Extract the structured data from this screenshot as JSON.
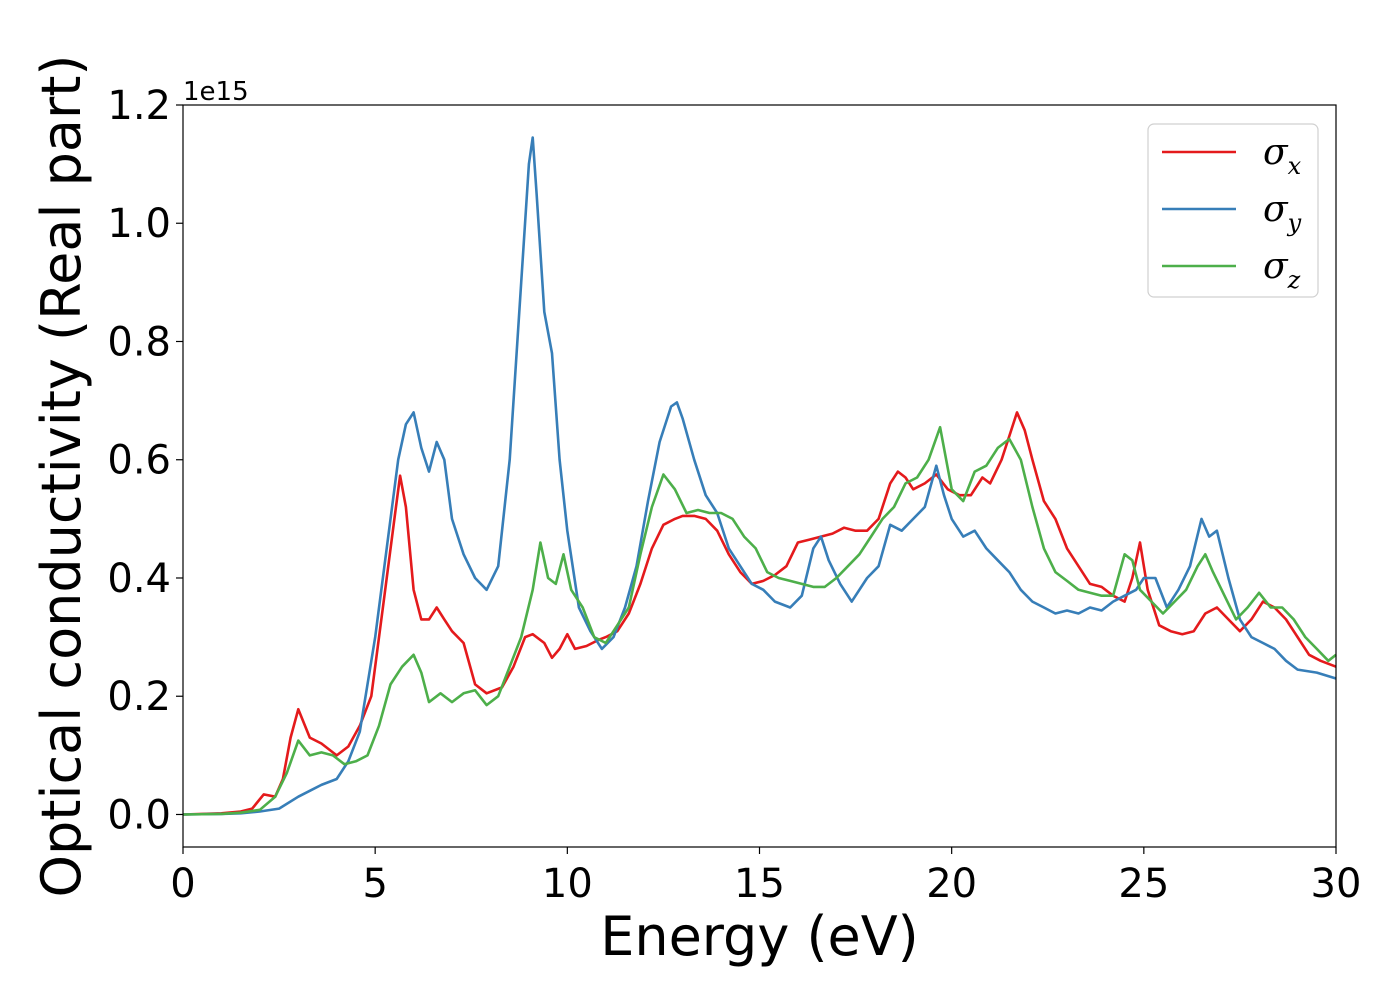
{
  "chart_data": {
    "type": "line",
    "title": "",
    "xlabel": "Energy (eV)",
    "ylabel": "Optical conductivity (Real part)",
    "y_offset_label": "1e15",
    "xlim": [
      0,
      30
    ],
    "ylim": [
      -0.055,
      1.2
    ],
    "x_ticks": [
      0,
      5,
      10,
      15,
      20,
      25,
      30
    ],
    "x_tick_labels": [
      "0",
      "5",
      "10",
      "15",
      "20",
      "25",
      "30"
    ],
    "y_ticks": [
      0.0,
      0.2,
      0.4,
      0.6,
      0.8,
      1.0,
      1.2
    ],
    "y_tick_labels": [
      "0.0",
      "0.2",
      "0.4",
      "0.6",
      "0.8",
      "1.0",
      "1.2"
    ],
    "grid": false,
    "legend_position": "top-right",
    "series": [
      {
        "name": "σ",
        "subscript": "x",
        "color": "#e41a1c",
        "x": [
          0,
          1,
          1.5,
          1.8,
          2.1,
          2.4,
          2.6,
          2.8,
          3.0,
          3.3,
          3.6,
          4.0,
          4.3,
          4.6,
          4.9,
          5.2,
          5.5,
          5.65,
          5.8,
          6.0,
          6.2,
          6.4,
          6.6,
          6.8,
          7.0,
          7.3,
          7.6,
          7.9,
          8.3,
          8.6,
          8.9,
          9.1,
          9.4,
          9.6,
          9.8,
          10.0,
          10.2,
          10.5,
          10.8,
          11.0,
          11.3,
          11.6,
          11.9,
          12.2,
          12.5,
          12.8,
          13.0,
          13.3,
          13.6,
          13.9,
          14.2,
          14.5,
          14.8,
          15.1,
          15.4,
          15.7,
          16.0,
          16.3,
          16.6,
          16.9,
          17.2,
          17.5,
          17.8,
          18.1,
          18.4,
          18.6,
          18.8,
          19.0,
          19.3,
          19.6,
          19.9,
          20.2,
          20.5,
          20.8,
          21.0,
          21.3,
          21.5,
          21.7,
          21.9,
          22.1,
          22.4,
          22.7,
          23.0,
          23.3,
          23.6,
          23.9,
          24.2,
          24.5,
          24.7,
          24.9,
          25.1,
          25.4,
          25.7,
          26.0,
          26.3,
          26.6,
          26.9,
          27.2,
          27.5,
          27.8,
          28.1,
          28.4,
          28.7,
          29.0,
          29.3,
          29.6,
          30.0
        ],
        "y": [
          0,
          0.002,
          0.005,
          0.01,
          0.034,
          0.03,
          0.06,
          0.13,
          0.178,
          0.13,
          0.12,
          0.1,
          0.115,
          0.15,
          0.2,
          0.35,
          0.5,
          0.573,
          0.52,
          0.38,
          0.33,
          0.33,
          0.35,
          0.33,
          0.31,
          0.29,
          0.22,
          0.205,
          0.215,
          0.25,
          0.3,
          0.305,
          0.29,
          0.265,
          0.28,
          0.305,
          0.28,
          0.285,
          0.295,
          0.3,
          0.31,
          0.34,
          0.39,
          0.45,
          0.49,
          0.5,
          0.505,
          0.505,
          0.5,
          0.48,
          0.44,
          0.41,
          0.39,
          0.395,
          0.405,
          0.42,
          0.46,
          0.465,
          0.47,
          0.475,
          0.485,
          0.48,
          0.48,
          0.5,
          0.56,
          0.58,
          0.57,
          0.55,
          0.56,
          0.575,
          0.55,
          0.54,
          0.54,
          0.57,
          0.56,
          0.6,
          0.64,
          0.68,
          0.65,
          0.6,
          0.53,
          0.5,
          0.45,
          0.42,
          0.39,
          0.385,
          0.37,
          0.36,
          0.4,
          0.46,
          0.38,
          0.32,
          0.31,
          0.305,
          0.31,
          0.34,
          0.35,
          0.33,
          0.31,
          0.33,
          0.36,
          0.35,
          0.33,
          0.3,
          0.27,
          0.26,
          0.25
        ]
      },
      {
        "name": "σ",
        "subscript": "y",
        "color": "#377eb8",
        "x": [
          0,
          1,
          1.5,
          2.0,
          2.5,
          3.0,
          3.3,
          3.6,
          4.0,
          4.3,
          4.6,
          5.0,
          5.3,
          5.6,
          5.8,
          6.0,
          6.2,
          6.4,
          6.6,
          6.8,
          7.0,
          7.3,
          7.6,
          7.9,
          8.2,
          8.5,
          8.8,
          9.0,
          9.1,
          9.2,
          9.4,
          9.6,
          9.8,
          10.0,
          10.3,
          10.6,
          10.9,
          11.2,
          11.5,
          11.8,
          12.1,
          12.4,
          12.7,
          12.85,
          13.0,
          13.3,
          13.6,
          13.9,
          14.2,
          14.5,
          14.8,
          15.1,
          15.4,
          15.8,
          16.1,
          16.4,
          16.6,
          16.8,
          17.1,
          17.4,
          17.8,
          18.1,
          18.4,
          18.7,
          19.0,
          19.3,
          19.6,
          19.8,
          20.0,
          20.3,
          20.6,
          20.9,
          21.2,
          21.5,
          21.8,
          22.1,
          22.4,
          22.7,
          23.0,
          23.3,
          23.6,
          23.9,
          24.2,
          24.5,
          24.8,
          25.0,
          25.3,
          25.6,
          25.9,
          26.2,
          26.5,
          26.7,
          26.9,
          27.2,
          27.5,
          27.8,
          28.1,
          28.4,
          28.7,
          29.0,
          29.5,
          30.0
        ],
        "y": [
          0,
          0.001,
          0.002,
          0.005,
          0.01,
          0.03,
          0.04,
          0.05,
          0.06,
          0.09,
          0.14,
          0.3,
          0.45,
          0.6,
          0.66,
          0.68,
          0.62,
          0.58,
          0.63,
          0.6,
          0.5,
          0.44,
          0.4,
          0.38,
          0.42,
          0.6,
          0.9,
          1.1,
          1.145,
          1.05,
          0.85,
          0.78,
          0.6,
          0.48,
          0.35,
          0.31,
          0.28,
          0.3,
          0.35,
          0.42,
          0.53,
          0.63,
          0.69,
          0.697,
          0.67,
          0.6,
          0.54,
          0.51,
          0.45,
          0.42,
          0.39,
          0.38,
          0.36,
          0.35,
          0.37,
          0.45,
          0.47,
          0.43,
          0.39,
          0.36,
          0.4,
          0.42,
          0.49,
          0.48,
          0.5,
          0.52,
          0.59,
          0.54,
          0.5,
          0.47,
          0.48,
          0.45,
          0.43,
          0.41,
          0.38,
          0.36,
          0.35,
          0.34,
          0.345,
          0.34,
          0.35,
          0.345,
          0.36,
          0.37,
          0.38,
          0.4,
          0.4,
          0.35,
          0.38,
          0.42,
          0.5,
          0.47,
          0.48,
          0.4,
          0.33,
          0.3,
          0.29,
          0.28,
          0.26,
          0.245,
          0.24,
          0.23
        ]
      },
      {
        "name": "σ",
        "subscript": "z",
        "color": "#4daf4a",
        "x": [
          0,
          1,
          1.5,
          2.0,
          2.4,
          2.7,
          3.0,
          3.3,
          3.6,
          3.9,
          4.2,
          4.5,
          4.8,
          5.1,
          5.4,
          5.7,
          6.0,
          6.2,
          6.4,
          6.7,
          7.0,
          7.3,
          7.6,
          7.9,
          8.2,
          8.5,
          8.8,
          9.1,
          9.3,
          9.5,
          9.7,
          9.9,
          10.1,
          10.4,
          10.7,
          11.0,
          11.3,
          11.6,
          11.9,
          12.2,
          12.5,
          12.8,
          13.1,
          13.4,
          13.7,
          14.0,
          14.3,
          14.6,
          14.9,
          15.2,
          15.5,
          15.8,
          16.1,
          16.4,
          16.7,
          17.0,
          17.3,
          17.6,
          17.9,
          18.2,
          18.5,
          18.8,
          19.1,
          19.4,
          19.7,
          20.0,
          20.3,
          20.6,
          20.9,
          21.2,
          21.5,
          21.8,
          22.1,
          22.4,
          22.7,
          23.0,
          23.3,
          23.6,
          23.9,
          24.2,
          24.5,
          24.7,
          24.9,
          25.2,
          25.5,
          25.8,
          26.1,
          26.4,
          26.6,
          26.8,
          27.1,
          27.4,
          27.7,
          28.0,
          28.3,
          28.6,
          28.9,
          29.2,
          29.5,
          29.8,
          30.0
        ],
        "y": [
          0,
          0.001,
          0.003,
          0.008,
          0.03,
          0.07,
          0.125,
          0.1,
          0.105,
          0.1,
          0.085,
          0.09,
          0.1,
          0.15,
          0.22,
          0.25,
          0.27,
          0.24,
          0.19,
          0.205,
          0.19,
          0.205,
          0.21,
          0.185,
          0.2,
          0.25,
          0.3,
          0.38,
          0.46,
          0.4,
          0.39,
          0.44,
          0.38,
          0.35,
          0.3,
          0.29,
          0.32,
          0.35,
          0.44,
          0.52,
          0.575,
          0.55,
          0.51,
          0.515,
          0.51,
          0.51,
          0.5,
          0.47,
          0.45,
          0.41,
          0.4,
          0.395,
          0.39,
          0.385,
          0.385,
          0.4,
          0.42,
          0.44,
          0.47,
          0.5,
          0.52,
          0.56,
          0.57,
          0.6,
          0.655,
          0.55,
          0.53,
          0.58,
          0.59,
          0.62,
          0.635,
          0.6,
          0.52,
          0.45,
          0.41,
          0.395,
          0.38,
          0.375,
          0.37,
          0.37,
          0.44,
          0.43,
          0.38,
          0.36,
          0.34,
          0.36,
          0.38,
          0.42,
          0.44,
          0.41,
          0.37,
          0.33,
          0.35,
          0.375,
          0.35,
          0.35,
          0.33,
          0.3,
          0.28,
          0.26,
          0.27
        ]
      }
    ]
  }
}
